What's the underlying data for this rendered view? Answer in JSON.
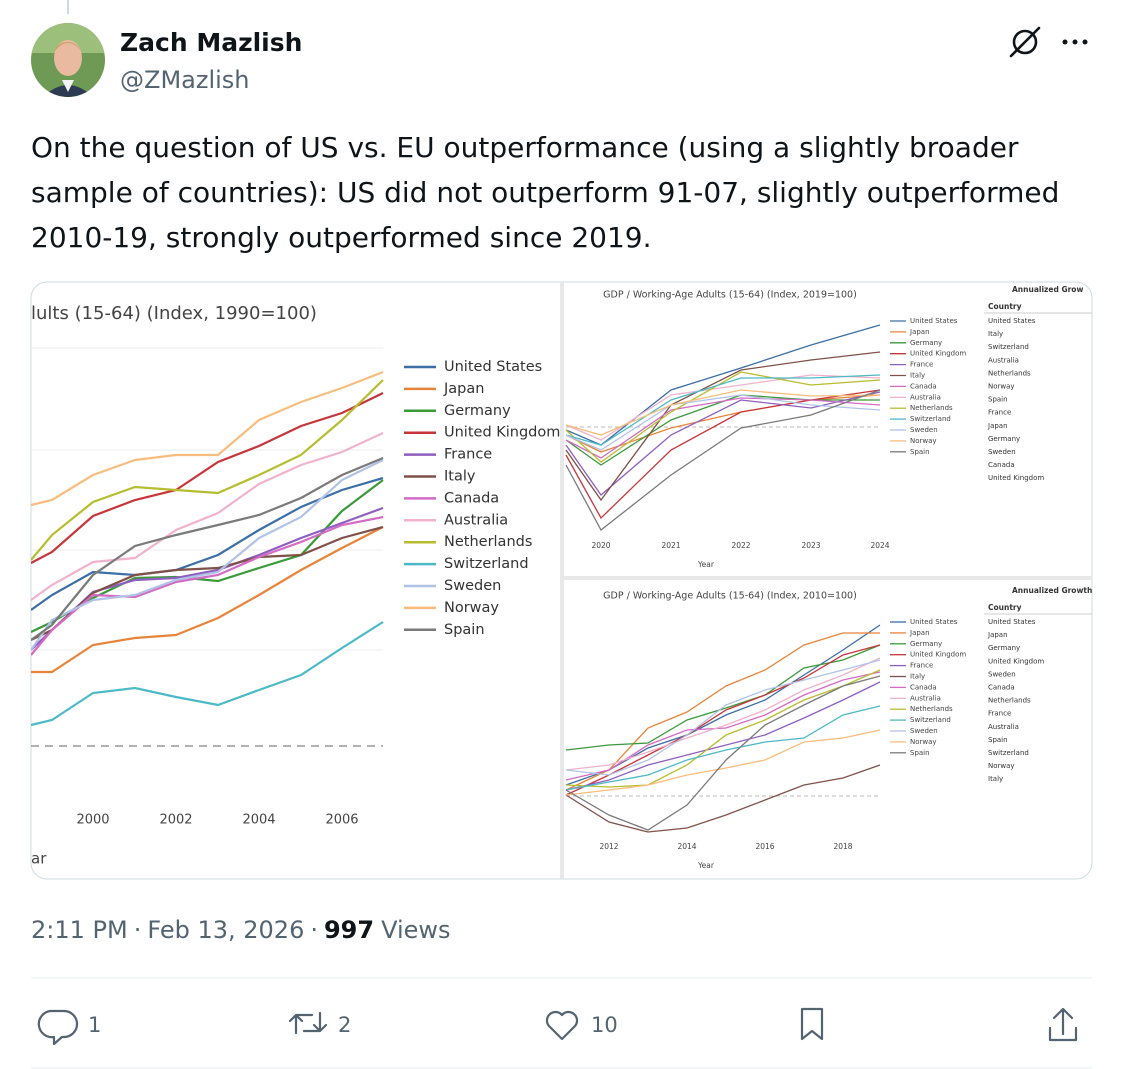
{
  "author": {
    "name": "Zach Mazlish",
    "handle": "@ZMazlish"
  },
  "text_lines": [
    "On the question of US vs. EU outperformance (using a slightly broader",
    "sample of countries): US did not outperform 91-07, slightly outperformed",
    "2010-19, strongly outperformed since 2019."
  ],
  "image": {
    "left": {
      "title": "lults (15-64) (Index, 1990=100)",
      "legend": [
        {
          "name": "United States",
          "color": "#3b6fa6"
        },
        {
          "name": "Japan",
          "color": "#e8843a"
        },
        {
          "name": "Germany",
          "color": "#3a9a3a"
        },
        {
          "name": "United Kingdom",
          "color": "#c7353a"
        },
        {
          "name": "France",
          "color": "#8f5fc0"
        },
        {
          "name": "Italy",
          "color": "#7f5148"
        },
        {
          "name": "Canada",
          "color": "#d46ac4"
        },
        {
          "name": "Australia",
          "color": "#f0b2cc"
        },
        {
          "name": "Netherlands",
          "color": "#b6bd2e"
        },
        {
          "name": "Switzerland",
          "color": "#4cb9c6"
        },
        {
          "name": "Sweden",
          "color": "#b0c3e6"
        },
        {
          "name": "Norway",
          "color": "#f8bd7c"
        },
        {
          "name": "Spain",
          "color": "#7a7a7a"
        }
      ],
      "x_ticks": [
        "2000",
        "2002",
        "2004",
        "2006"
      ],
      "x_label": "ar"
    },
    "top_right": {
      "title": "GDP / Working-Age Adults (15-64) (Index, 2019=100)",
      "x_ticks": [
        "2020",
        "2021",
        "2022",
        "2023",
        "2024"
      ],
      "x_label": "Year",
      "legend": [
        "United States",
        "Japan",
        "Germany",
        "United Kingdom",
        "France",
        "Italy",
        "Canada",
        "Australia",
        "Netherlands",
        "Switzerland",
        "Sweden",
        "Norway",
        "Spain"
      ],
      "table_title": "Annualized Grow",
      "table_header": "Country",
      "table_rows": [
        "United States",
        "Italy",
        "Switzerland",
        "Australia",
        "Netherlands",
        "Norway",
        "Spain",
        "France",
        "Japan",
        "Germany",
        "Sweden",
        "Canada",
        "United Kingdom"
      ]
    },
    "bottom_right": {
      "title": "GDP / Working-Age Adults (15-64) (Index, 2010=100)",
      "x_ticks": [
        "2012",
        "2014",
        "2016",
        "2018"
      ],
      "x_label": "Year",
      "legend": [
        "United States",
        "Japan",
        "Germany",
        "United Kingdom",
        "France",
        "Italy",
        "Canada",
        "Australia",
        "Netherlands",
        "Switzerland",
        "Sweden",
        "Norway",
        "Spain"
      ],
      "table_title": "Annualized Growth",
      "table_header": "Country",
      "table_rows": [
        "United States",
        "Japan",
        "Germany",
        "United Kingdom",
        "Sweden",
        "Canada",
        "Netherlands",
        "France",
        "Australia",
        "Spain",
        "Switzerland",
        "Norway",
        "Italy"
      ]
    }
  },
  "meta": {
    "time": "2:11 PM",
    "separator": "·",
    "date": "Feb 13, 2026",
    "views_count": "997",
    "views_label": "Views"
  },
  "actions": {
    "replies": "1",
    "reposts": "2",
    "likes": "10"
  }
}
